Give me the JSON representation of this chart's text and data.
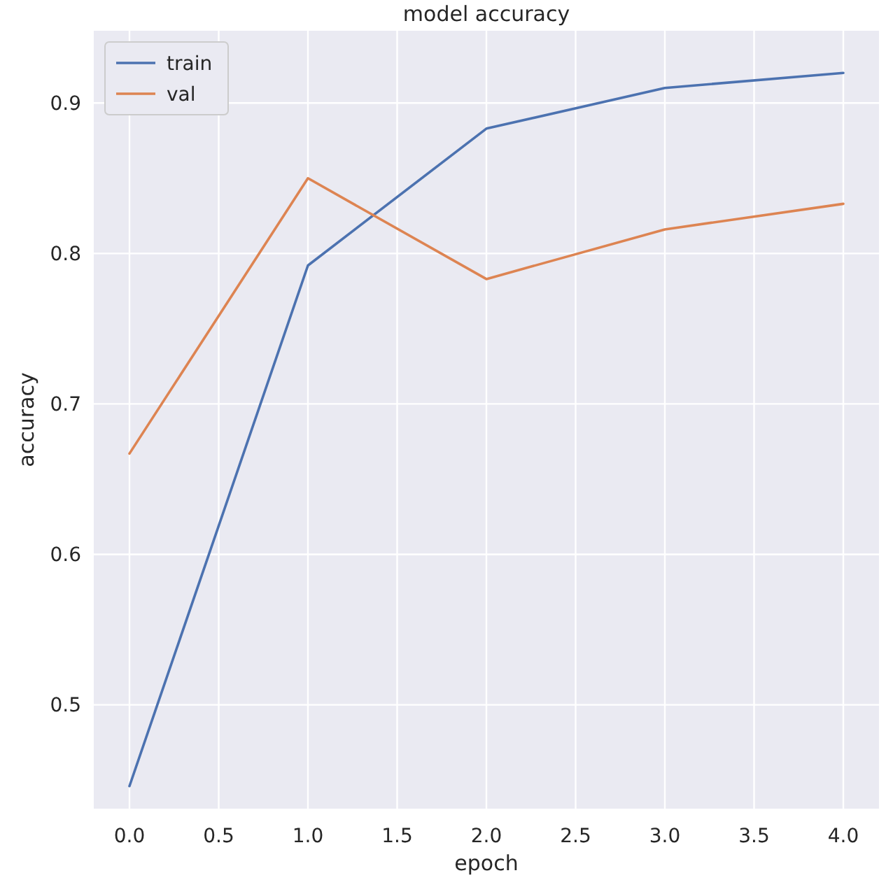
{
  "chart_data": {
    "type": "line",
    "title": "model accuracy",
    "xlabel": "epoch",
    "ylabel": "accuracy",
    "x": [
      0,
      1,
      2,
      3,
      4
    ],
    "series": [
      {
        "name": "train",
        "color": "#4c72b0",
        "values": [
          0.446,
          0.792,
          0.883,
          0.91,
          0.92
        ]
      },
      {
        "name": "val",
        "color": "#dd8452",
        "values": [
          0.667,
          0.85,
          0.783,
          0.816,
          0.833
        ]
      }
    ],
    "xlim": [
      -0.2,
      4.2
    ],
    "ylim": [
      0.431,
      0.948
    ],
    "xticks": [
      {
        "value": 0,
        "label": "0.0"
      },
      {
        "value": 0.5,
        "label": "0.5"
      },
      {
        "value": 1,
        "label": "1.0"
      },
      {
        "value": 1.5,
        "label": "1.5"
      },
      {
        "value": 2,
        "label": "2.0"
      },
      {
        "value": 2.5,
        "label": "2.5"
      },
      {
        "value": 3,
        "label": "3.0"
      },
      {
        "value": 3.5,
        "label": "3.5"
      },
      {
        "value": 4,
        "label": "4.0"
      }
    ],
    "yticks": [
      0.5,
      0.6,
      0.7,
      0.8,
      0.9
    ],
    "grid": true,
    "legend": "top left",
    "marker": "none",
    "line_style": "solid"
  }
}
